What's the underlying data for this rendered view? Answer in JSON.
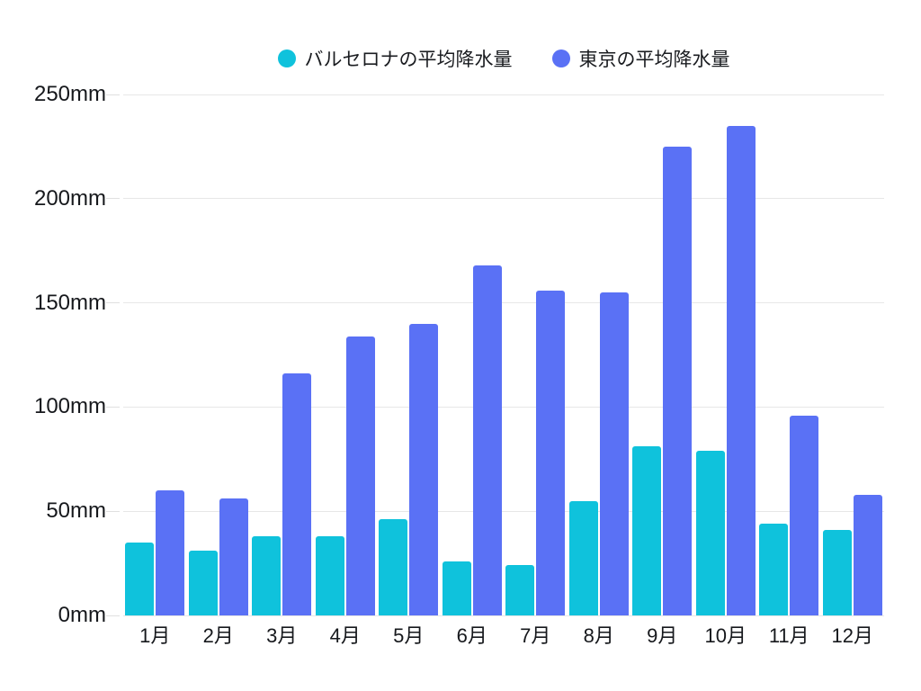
{
  "legend": {
    "items": [
      {
        "label": "バルセロナの平均降水量",
        "color": "#0FC2DC"
      },
      {
        "label": "東京の平均降水量",
        "color": "#5A71F5"
      }
    ]
  },
  "chart_data": {
    "type": "bar",
    "title": "",
    "xlabel": "",
    "ylabel": "",
    "categories": [
      "1月",
      "2月",
      "3月",
      "4月",
      "5月",
      "6月",
      "7月",
      "8月",
      "9月",
      "10月",
      "11月",
      "12月"
    ],
    "series": [
      {
        "name": "バルセロナの平均降水量",
        "color": "#0FC2DC",
        "values": [
          35,
          31,
          38,
          38,
          46,
          26,
          24,
          55,
          81,
          79,
          44,
          41
        ]
      },
      {
        "name": "東京の平均降水量",
        "color": "#5A71F5",
        "values": [
          60,
          56,
          116,
          134,
          140,
          168,
          156,
          155,
          225,
          235,
          96,
          58
        ]
      }
    ],
    "unit": "mm",
    "ylim": [
      0,
      250
    ],
    "ytick_step": 50,
    "ytick_labels": [
      "0mm",
      "50mm",
      "100mm",
      "150mm",
      "200mm",
      "250mm"
    ],
    "grid": true,
    "legend_position": "top"
  },
  "colors": {
    "background": "#ffffff",
    "gridline": "#e7e7e7",
    "text": "#16181c",
    "series_barcelona": "#0FC2DC",
    "series_tokyo": "#5A71F5"
  }
}
